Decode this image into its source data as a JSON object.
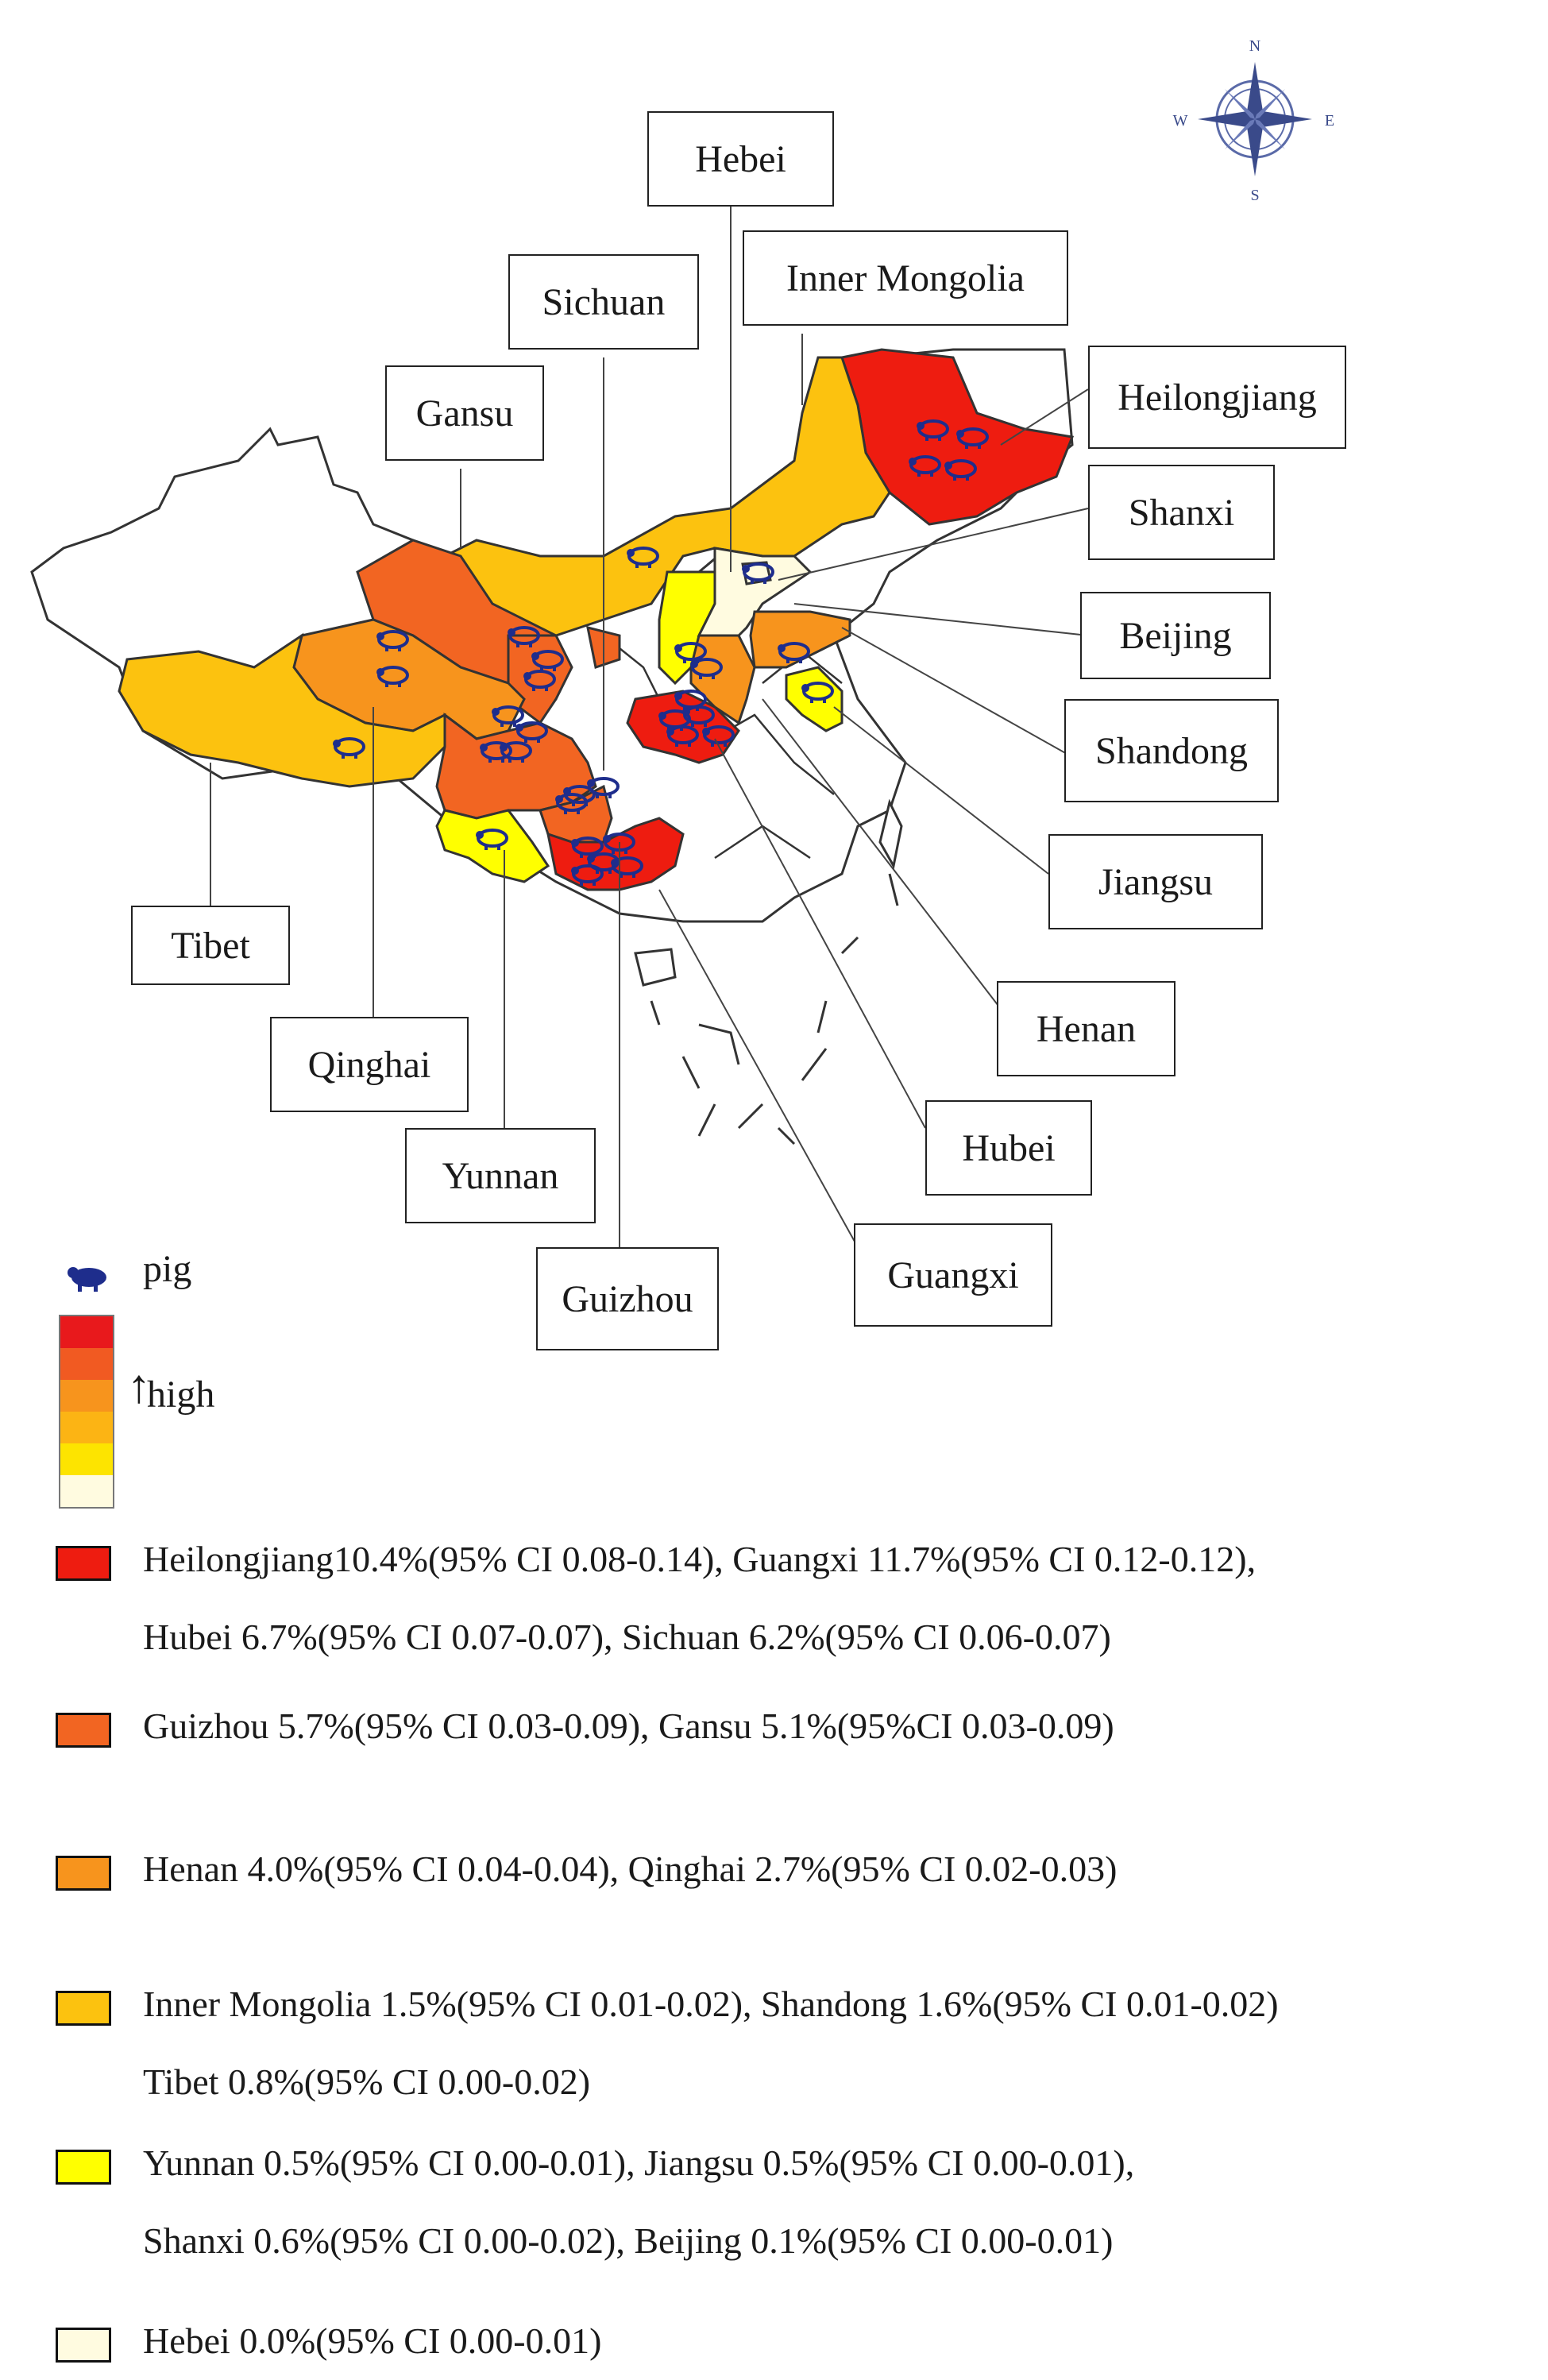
{
  "compass": {
    "n": "N",
    "s": "S",
    "e": "E",
    "w": "W"
  },
  "provinces": [
    {
      "id": "hebei",
      "label": "Hebei",
      "level": 6
    },
    {
      "id": "inner-mongolia",
      "label": "Inner Mongolia",
      "level": 4
    },
    {
      "id": "sichuan",
      "label": "Sichuan",
      "level": 1
    },
    {
      "id": "gansu",
      "label": "Gansu",
      "level": 2
    },
    {
      "id": "heilongjiang",
      "label": "Heilongjiang",
      "level": 1
    },
    {
      "id": "shanxi",
      "label": "Shanxi",
      "level": 5
    },
    {
      "id": "beijing",
      "label": "Beijing",
      "level": 5
    },
    {
      "id": "shandong",
      "label": "Shandong",
      "level": 4
    },
    {
      "id": "jiangsu",
      "label": "Jiangsu",
      "level": 5
    },
    {
      "id": "henan",
      "label": "Henan",
      "level": 3
    },
    {
      "id": "hubei",
      "label": "Hubei",
      "level": 1
    },
    {
      "id": "guangxi",
      "label": "Guangxi",
      "level": 1
    },
    {
      "id": "guizhou",
      "label": "Guizhou",
      "level": 2
    },
    {
      "id": "yunnan",
      "label": "Yunnan",
      "level": 5
    },
    {
      "id": "qinghai",
      "label": "Qinghai",
      "level": 3
    },
    {
      "id": "tibet",
      "label": "Tibet",
      "level": 4
    }
  ],
  "colors": {
    "level1": "#ee1c10",
    "level2": "#f26522",
    "level3": "#f7941d",
    "level4": "#fcc20f",
    "level5": "#ffff00",
    "level6": "#fffbe0",
    "border": "#333333",
    "pig_icon": "#1e2d8c"
  },
  "legend": {
    "icon_label": "pig",
    "icon_name": "pig-icon",
    "scale_label": "high",
    "scale_colors": [
      "#e8191c",
      "#f15a22",
      "#f7941d",
      "#fcb414",
      "#fde400",
      "#fffbe0"
    ],
    "entries": [
      {
        "color": "#ee1c10",
        "lines": [
          "Heilongjiang10.4%(95% CI 0.08-0.14), Guangxi 11.7%(95% CI 0.12-0.12),",
          "Hubei 6.7%(95% CI 0.07-0.07), Sichuan 6.2%(95% CI 0.06-0.07)"
        ]
      },
      {
        "color": "#f26522",
        "lines": [
          "Guizhou 5.7%(95% CI 0.03-0.09), Gansu 5.1%(95%CI 0.03-0.09)"
        ]
      },
      {
        "color": "#f7941d",
        "lines": [
          "Henan 4.0%(95% CI 0.04-0.04), Qinghai 2.7%(95% CI 0.02-0.03)"
        ]
      },
      {
        "color": "#fcc20f",
        "lines": [
          "Inner Mongolia 1.5%(95% CI 0.01-0.02), Shandong 1.6%(95% CI 0.01-0.02)",
          "Tibet 0.8%(95% CI 0.00-0.02)"
        ]
      },
      {
        "color": "#ffff00",
        "lines": [
          "Yunnan 0.5%(95% CI 0.00-0.01), Jiangsu 0.5%(95% CI 0.00-0.01),",
          "Shanxi 0.6%(95% CI 0.00-0.02), Beijing 0.1%(95% CI 0.00-0.01)"
        ]
      },
      {
        "color": "#fffbe0",
        "lines": [
          "Hebei 0.0%(95% CI 0.00-0.01)"
        ]
      }
    ]
  }
}
